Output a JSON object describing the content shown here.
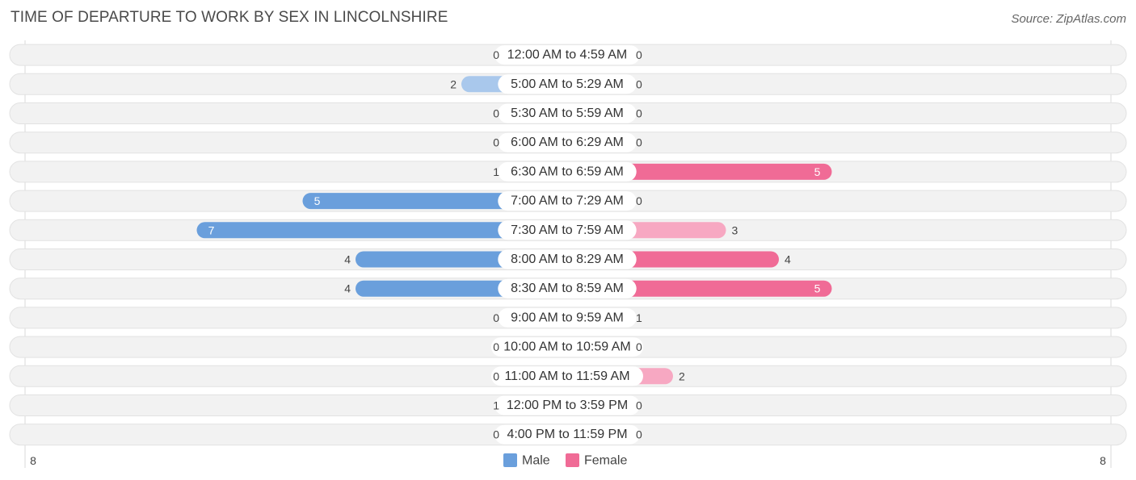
{
  "header": {
    "title": "TIME OF DEPARTURE TO WORK BY SEX IN LINCOLNSHIRE",
    "source": "Source: ZipAtlas.com"
  },
  "chart_data": {
    "type": "bar",
    "orientation": "horizontal-diverging",
    "title": "TIME OF DEPARTURE TO WORK BY SEX IN LINCOLNSHIRE",
    "categories": [
      "12:00 AM to 4:59 AM",
      "5:00 AM to 5:29 AM",
      "5:30 AM to 5:59 AM",
      "6:00 AM to 6:29 AM",
      "6:30 AM to 6:59 AM",
      "7:00 AM to 7:29 AM",
      "7:30 AM to 7:59 AM",
      "8:00 AM to 8:29 AM",
      "8:30 AM to 8:59 AM",
      "9:00 AM to 9:59 AM",
      "10:00 AM to 10:59 AM",
      "11:00 AM to 11:59 AM",
      "12:00 PM to 3:59 PM",
      "4:00 PM to 11:59 PM"
    ],
    "series": [
      {
        "name": "Male",
        "color": "#6a9fdc",
        "color_light": "#a9c8ec",
        "values": [
          0,
          2,
          0,
          0,
          1,
          5,
          7,
          4,
          4,
          0,
          0,
          0,
          1,
          0
        ]
      },
      {
        "name": "Female",
        "color": "#f06b96",
        "color_light": "#f7a8c2",
        "values": [
          0,
          0,
          0,
          0,
          5,
          0,
          3,
          4,
          5,
          1,
          0,
          2,
          0,
          0
        ]
      }
    ],
    "axis": {
      "left_max_label": "8",
      "right_max_label": "8",
      "max": 8
    },
    "legend": {
      "position": "bottom-center",
      "items": [
        "Male",
        "Female"
      ]
    }
  }
}
